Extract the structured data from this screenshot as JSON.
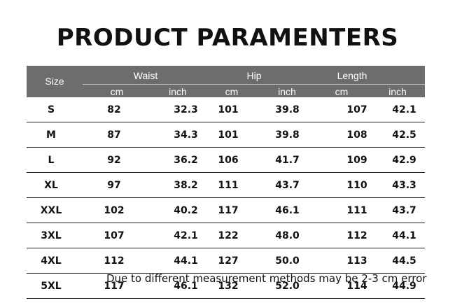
{
  "title": "PRODUCT PARAMENTERS",
  "table": {
    "size_header": "Size",
    "groups": [
      {
        "label": "Waist",
        "units": [
          "cm",
          "inch"
        ]
      },
      {
        "label": "Hip",
        "units": [
          "cm",
          "inch"
        ]
      },
      {
        "label": "Length",
        "units": [
          "cm",
          "inch"
        ]
      }
    ],
    "rows": [
      {
        "size": "S",
        "waist_cm": "82",
        "waist_in": "32.3",
        "hip_cm": "101",
        "hip_in": "39.8",
        "len_cm": "107",
        "len_in": "42.1"
      },
      {
        "size": "M",
        "waist_cm": "87",
        "waist_in": "34.3",
        "hip_cm": "101",
        "hip_in": "39.8",
        "len_cm": "108",
        "len_in": "42.5"
      },
      {
        "size": "L",
        "waist_cm": "92",
        "waist_in": "36.2",
        "hip_cm": "106",
        "hip_in": "41.7",
        "len_cm": "109",
        "len_in": "42.9"
      },
      {
        "size": "XL",
        "waist_cm": "97",
        "waist_in": "38.2",
        "hip_cm": "111",
        "hip_in": "43.7",
        "len_cm": "110",
        "len_in": "43.3"
      },
      {
        "size": "XXL",
        "waist_cm": "102",
        "waist_in": "40.2",
        "hip_cm": "117",
        "hip_in": "46.1",
        "len_cm": "111",
        "len_in": "43.7"
      },
      {
        "size": "3XL",
        "waist_cm": "107",
        "waist_in": "42.1",
        "hip_cm": "122",
        "hip_in": "48.0",
        "len_cm": "112",
        "len_in": "44.1"
      },
      {
        "size": "4XL",
        "waist_cm": "112",
        "waist_in": "44.1",
        "hip_cm": "127",
        "hip_in": "50.0",
        "len_cm": "113",
        "len_in": "44.5"
      },
      {
        "size": "5XL",
        "waist_cm": "117",
        "waist_in": "46.1",
        "hip_cm": "132",
        "hip_in": "52.0",
        "len_cm": "114",
        "len_in": "44.9"
      }
    ]
  },
  "note": "Due to different measurement methods may be 2-3 cm error"
}
